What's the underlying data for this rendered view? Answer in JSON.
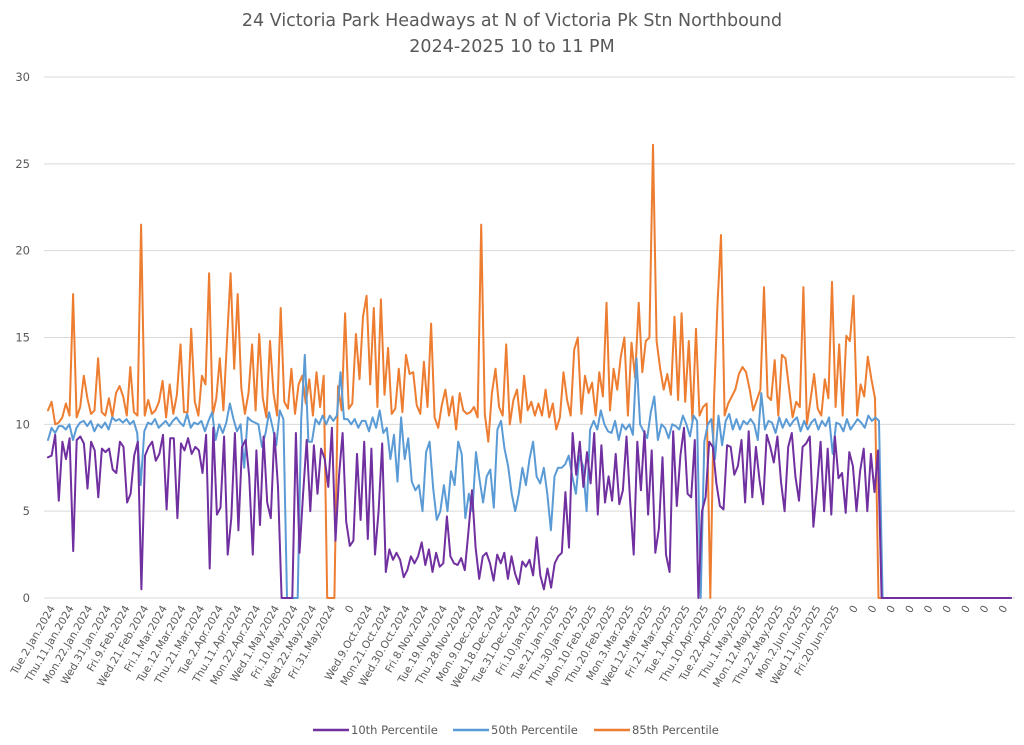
{
  "chart_data": {
    "type": "line",
    "title": "24 Victoria Park Headways at N of Victoria Pk Stn Northbound",
    "subtitle": "2024-2025 10 to 11 PM",
    "xlabel": "",
    "ylabel": "",
    "ylim": [
      0,
      30
    ],
    "yticks": [
      "0",
      "5",
      "10",
      "15",
      "20",
      "25",
      "30"
    ],
    "grid": true,
    "legend_position": "bottom",
    "colors": {
      "p10": "#7030a0",
      "p50": "#5b9bd5",
      "p85": "#ed7d31",
      "grid": "#d9d9d9",
      "text": "#595959"
    },
    "x_tick_labels": [
      "Tue.2.Jan.2024",
      "Thu.11.Jan.2024",
      "Mon.22.Jan.2024",
      "Wed.31.Jan.2024",
      "Fri.9.Feb.2024",
      "Wed.21.Feb.2024",
      "Fri.1.Mar.2024",
      "Tue.12.Mar.2024",
      "Thu.21.Mar.2024",
      "Tue.2.Apr.2024",
      "Thu.11.Apr.2024",
      "Mon.22.Apr.2024",
      "Wed.1.May.2024",
      "Fri.10.May.2024",
      "Wed.22.May.2024",
      "Fri.31.May.2024",
      "0",
      "Wed.9.Oct.2024",
      "Mon.21.Oct.2024",
      "Wed.30.Oct.2024",
      "Fri.8.Nov.2024",
      "Tue.19.Nov.2024",
      "Thu.28.Nov.2024",
      "Mon.9.Dec.2024",
      "Wed.18.Dec.2024",
      "Tue.31.Dec.2024",
      "Fri.10.Jan.2025",
      "Tue.21.Jan.2025",
      "Thu.30.Jan.2025",
      "Mon.10.Feb.2025",
      "Thu.20.Feb.2025",
      "Mon.3.Mar.2025",
      "Wed.12.Mar.2025",
      "Fri.21.Mar.2025",
      "Tue.1.Apr.2025",
      "Thu.10.Apr.2025",
      "Tue.22.Apr.2025",
      "Thu.1.May.2025",
      "Mon.12.May.2025",
      "Thu.22.May.2025",
      "Mon.2.Jun.2025",
      "Wed.11.Jun.2025",
      "Fri.20.Jun.2025",
      "0",
      "0",
      "0",
      "0",
      "0",
      "0",
      "0",
      "0",
      "0"
    ],
    "series": [
      {
        "name": "10th Percentile",
        "key": "p10",
        "values": [
          8.1,
          8.2,
          9.4,
          5.6,
          9.0,
          8.0,
          9.2,
          2.7,
          9.1,
          9.3,
          8.9,
          6.3,
          9.0,
          8.5,
          5.8,
          8.6,
          8.4,
          8.6,
          7.4,
          7.2,
          9.0,
          8.7,
          5.5,
          6.0,
          8.2,
          9.0,
          0.5,
          8.2,
          8.7,
          9.0,
          7.9,
          8.3,
          9.4,
          5.1,
          9.2,
          9.2,
          4.6,
          8.9,
          8.5,
          9.2,
          8.3,
          8.7,
          8.5,
          7.2,
          9.4,
          1.7,
          9.8,
          4.8,
          5.2,
          9.3,
          2.5,
          4.6,
          9.5,
          3.9,
          8.7,
          9.1,
          7.0,
          2.5,
          8.5,
          4.2,
          9.3,
          5.5,
          4.6,
          9.5,
          6.4,
          0,
          0,
          0,
          0,
          9.5,
          2.6,
          6.0,
          9.1,
          5.0,
          8.8,
          6.0,
          8.6,
          8.0,
          6.4,
          9.8,
          3.3,
          7.1,
          9.5,
          4.4,
          3.0,
          3.3,
          8.3,
          4.5,
          9.0,
          3.4,
          8.6,
          2.5,
          5.0,
          8.9,
          1.5,
          2.8,
          2.2,
          2.6,
          2.2,
          1.2,
          1.6,
          2.4,
          2.0,
          2.4,
          3.2,
          1.9,
          2.8,
          1.5,
          2.6,
          1.8,
          2.0,
          4.7,
          2.4,
          2.0,
          1.9,
          2.3,
          1.6,
          3.8,
          6.2,
          2.9,
          1.1,
          2.4,
          2.6,
          2.0,
          1.0,
          2.5,
          2.0,
          2.6,
          1.1,
          2.4,
          1.4,
          0.8,
          2.1,
          1.8,
          2.2,
          1.3,
          3.5,
          1.3,
          0.5,
          1.7,
          0.6,
          2.0,
          2.4,
          2.6,
          6.1,
          2.9,
          9.5,
          7.1,
          9.0,
          6.4,
          8.4,
          6.6,
          9.5,
          4.8,
          8.8,
          5.5,
          7.0,
          5.6,
          8.3,
          5.4,
          6.2,
          9.3,
          5.6,
          2.5,
          9.0,
          6.2,
          9.6,
          4.8,
          8.5,
          2.6,
          4.0,
          8.1,
          2.5,
          1.5,
          9.6,
          5.3,
          8.2,
          9.8,
          6.0,
          5.8,
          9.1,
          0,
          5.0,
          5.8,
          9.0,
          8.7,
          6.6,
          5.3,
          5.1,
          8.8,
          8.7,
          7.1,
          7.6,
          9.1,
          5.5,
          9.6,
          5.8,
          8.7,
          6.8,
          5.4,
          9.4,
          8.7,
          7.8,
          9.3,
          6.7,
          5.0,
          8.7,
          9.5,
          7.0,
          5.6,
          8.7,
          8.9,
          9.3,
          4.1,
          6.4,
          9.0,
          5.0,
          8.6,
          4.8,
          9.3,
          6.9,
          7.2,
          4.9,
          8.4,
          7.6,
          5.0,
          7.3,
          8.6,
          5.0,
          8.3,
          6.1,
          8.5,
          0,
          0,
          0,
          0,
          0,
          0,
          0,
          0,
          0,
          0,
          0,
          0,
          0,
          0,
          0,
          0,
          0,
          0,
          0,
          0,
          0,
          0,
          0,
          0,
          0,
          0,
          0,
          0,
          0,
          0,
          0,
          0,
          0,
          0,
          0,
          0,
          0
        ]
      },
      {
        "name": "50th Percentile",
        "key": "p50",
        "values": [
          9.1,
          9.8,
          9.5,
          9.9,
          9.9,
          9.7,
          10.0,
          9.1,
          9.8,
          10.1,
          10.2,
          9.9,
          10.2,
          9.6,
          10.0,
          9.8,
          10.1,
          9.7,
          10.4,
          10.2,
          10.3,
          10.1,
          10.3,
          10.0,
          10.2,
          9.5,
          6.5,
          9.6,
          10.1,
          10.0,
          10.3,
          9.8,
          10.0,
          10.2,
          9.9,
          10.2,
          10.4,
          10.1,
          9.9,
          10.6,
          9.8,
          10.1,
          10.0,
          10.2,
          9.6,
          10.2,
          10.7,
          9.1,
          10.0,
          9.5,
          10.1,
          11.2,
          10.3,
          9.6,
          10.0,
          7.5,
          10.4,
          10.2,
          10.1,
          10.0,
          8.7,
          9.5,
          10.7,
          9.8,
          8.8,
          10.8,
          10.3,
          0,
          0,
          0,
          0,
          10.3,
          14.0,
          9.0,
          9.0,
          10.3,
          10.0,
          10.5,
          10.0,
          10.5,
          10.2,
          10.5,
          13.0,
          10.3,
          10.3,
          10.0,
          10.3,
          9.8,
          10.2,
          10.2,
          9.6,
          10.4,
          9.8,
          10.8,
          9.5,
          9.8,
          8.0,
          9.4,
          6.7,
          10.4,
          8.0,
          9.2,
          6.7,
          6.2,
          6.5,
          5.0,
          8.4,
          9.0,
          6.3,
          4.5,
          5.0,
          6.5,
          5.0,
          7.3,
          6.5,
          9.0,
          8.3,
          4.6,
          6.0,
          5.0,
          8.4,
          6.8,
          5.5,
          7.0,
          7.4,
          5.2,
          9.7,
          10.2,
          8.6,
          7.6,
          6.0,
          5.0,
          6.0,
          7.5,
          6.5,
          8.0,
          9.0,
          7.0,
          6.6,
          7.5,
          6.0,
          3.9,
          7.0,
          7.5,
          7.5,
          7.7,
          8.2,
          7.0,
          6.0,
          8.2,
          7.6,
          5.0,
          9.7,
          10.2,
          9.7,
          10.8,
          10.0,
          9.6,
          9.5,
          10.2,
          9.1,
          10.0,
          9.7,
          10.0,
          9.4,
          13.8,
          10.0,
          9.6,
          9.2,
          10.7,
          11.6,
          9.1,
          10.0,
          9.8,
          9.2,
          10.0,
          9.9,
          9.7,
          10.5,
          10.0,
          9.3,
          10.5,
          10.2,
          0,
          9.0,
          10.0,
          10.3,
          8.0,
          10.5,
          8.8,
          10.2,
          10.6,
          9.7,
          10.3,
          9.7,
          10.2,
          10.0,
          10.3,
          10.0,
          9.1,
          11.8,
          9.7,
          10.2,
          10.1,
          9.5,
          10.4,
          9.8,
          10.3,
          9.9,
          10.2,
          10.4,
          9.6,
          10.2,
          9.7,
          10.1,
          10.3,
          9.7,
          10.2,
          9.9,
          10.4,
          8.3,
          10.1,
          10.0,
          9.6,
          10.3,
          9.7,
          10.0,
          10.3,
          10.1,
          9.8,
          10.5,
          10.2,
          10.4,
          10.2,
          0,
          0,
          0,
          0,
          0,
          0,
          0,
          0,
          0,
          0,
          0,
          0,
          0,
          0,
          0,
          0,
          0,
          0,
          0,
          0,
          0,
          0,
          0,
          0,
          0,
          0,
          0,
          0,
          0,
          0,
          0,
          0,
          0,
          0,
          0,
          0,
          0
        ]
      },
      {
        "name": "85th Percentile",
        "key": "p85",
        "values": [
          10.8,
          11.3,
          10.0,
          10.1,
          10.4,
          11.2,
          10.5,
          17.5,
          10.4,
          11.0,
          12.8,
          11.5,
          10.6,
          10.8,
          13.8,
          10.7,
          10.5,
          11.5,
          10.4,
          11.8,
          12.2,
          11.6,
          10.5,
          13.3,
          10.7,
          10.5,
          21.5,
          10.5,
          11.4,
          10.6,
          10.8,
          11.3,
          12.5,
          10.4,
          12.3,
          10.6,
          11.7,
          14.6,
          10.7,
          10.7,
          15.5,
          11.3,
          10.5,
          12.8,
          12.3,
          18.7,
          10.5,
          11.5,
          13.8,
          10.8,
          14.8,
          18.7,
          13.2,
          17.5,
          12.1,
          10.6,
          11.8,
          14.6,
          10.8,
          15.2,
          11.5,
          10.4,
          14.8,
          11.8,
          10.5,
          16.7,
          11.3,
          10.9,
          13.2,
          10.6,
          12.3,
          12.8,
          11.2,
          12.6,
          10.5,
          13.0,
          11.0,
          12.8,
          0,
          0,
          0,
          12.2,
          10.8,
          16.4,
          10.9,
          11.2,
          15.2,
          12.6,
          16.2,
          17.4,
          12.3,
          16.7,
          11.0,
          17.2,
          11.7,
          14.4,
          10.6,
          10.9,
          13.2,
          10.7,
          14.0,
          12.9,
          13.0,
          11.1,
          10.6,
          13.6,
          11.0,
          15.8,
          10.4,
          9.8,
          11.1,
          12.0,
          10.5,
          11.6,
          9.7,
          11.8,
          10.8,
          10.6,
          10.7,
          11.0,
          10.4,
          21.5,
          10.6,
          9.0,
          11.8,
          13.2,
          11.0,
          10.5,
          14.6,
          10.0,
          11.4,
          12.0,
          10.1,
          12.8,
          10.8,
          11.3,
          10.5,
          11.2,
          10.5,
          12.0,
          10.4,
          11.2,
          9.7,
          10.4,
          13.0,
          11.4,
          10.5,
          14.3,
          15.0,
          10.6,
          12.8,
          11.8,
          12.4,
          10.5,
          13.0,
          11.6,
          17.0,
          10.8,
          13.2,
          12.0,
          13.9,
          15.0,
          10.5,
          14.7,
          12.7,
          17.0,
          13.0,
          14.8,
          15.0,
          26.1,
          14.8,
          13.2,
          12.0,
          12.9,
          11.7,
          16.2,
          11.4,
          16.4,
          11.3,
          14.8,
          10.2,
          15.5,
          10.5,
          11.0,
          11.2,
          0,
          11.2,
          16.8,
          20.9,
          10.5,
          11.2,
          11.6,
          12.0,
          12.9,
          13.3,
          13.0,
          12.0,
          10.8,
          11.4,
          12.0,
          17.9,
          11.6,
          11.4,
          13.7,
          10.5,
          14.0,
          13.8,
          12.1,
          10.4,
          11.3,
          11.0,
          17.9,
          10.0,
          11.4,
          12.9,
          10.9,
          10.5,
          12.6,
          11.5,
          18.2,
          11.0,
          14.6,
          10.5,
          15.1,
          14.8,
          17.4,
          10.5,
          12.3,
          11.6,
          13.9,
          12.6,
          11.5,
          0,
          0,
          0,
          0,
          0,
          0,
          0,
          0,
          0,
          0,
          0,
          0,
          0,
          0,
          0,
          0,
          0,
          0,
          0,
          0,
          0,
          0,
          0,
          0,
          0,
          0,
          0,
          0,
          0,
          0,
          0,
          0,
          0,
          0,
          0,
          0,
          0,
          0
        ]
      }
    ],
    "segments_note_x_fraction_unused": null
  }
}
